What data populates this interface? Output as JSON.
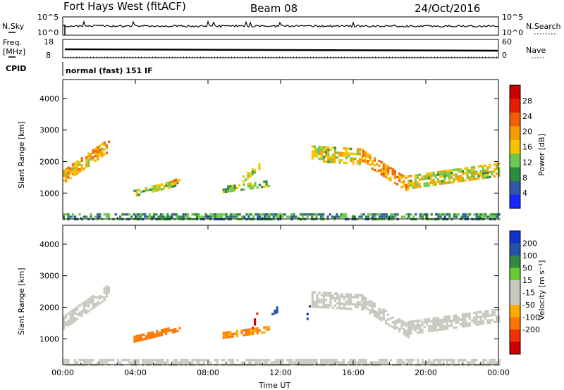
{
  "header": {
    "title": "Fort Hays West (fitACF)",
    "beam": "Beam 08",
    "date": "24/Oct/2016"
  },
  "panels": {
    "nsky": {
      "label": "N.Sky",
      "ticks_top": "10^5",
      "ticks_bottom": "10^0"
    },
    "nsearch": {
      "label": "N.Search",
      "ticks_top": "10^5",
      "ticks_bottom": "10^0"
    },
    "freq": {
      "label_1": "Freq.",
      "label_2": "[MHz]",
      "ticks_top": "18",
      "ticks_bottom": "8"
    },
    "nave": {
      "label": "Nave",
      "ticks_top": "60",
      "ticks_bottom": "0"
    },
    "cpid": {
      "label": "CPID",
      "text": "normal (fast) 151 IF"
    }
  },
  "colors": {
    "power": [
      "#1428ff",
      "#2f59a8",
      "#2f8c3c",
      "#6ec84c",
      "#f5c400",
      "#f59a00",
      "#f25f00",
      "#e61e00",
      "#c80000"
    ],
    "velocity": [
      "#cc0000",
      "#ee3300",
      "#ff7700",
      "#ffaa00",
      "#c8c8c0",
      "#c8c8c0",
      "#66cc33",
      "#338844",
      "#2255aa",
      "#1133cc"
    ]
  },
  "chart_data": [
    {
      "type": "heatmap",
      "ylabel": "Slant Range [km]",
      "xlabel": "",
      "x_ticks": [
        "00:00",
        "04:00",
        "08:00",
        "12:00",
        "16:00",
        "20:00",
        "00:00"
      ],
      "y_ticks": [
        "1000",
        "2000",
        "3000",
        "4000"
      ],
      "xlim": [
        0,
        24
      ],
      "ylim": [
        180,
        4600
      ],
      "colorbar": {
        "label": "Power [dB]",
        "ticks": [
          "4",
          "8",
          "12",
          "16",
          "20",
          "24",
          "28"
        ],
        "range": [
          0,
          32
        ]
      },
      "regions": [
        {
          "t0": 0.0,
          "t1": 2.6,
          "r_start": 1550,
          "r_end": 2600,
          "width": 380,
          "value": 18
        },
        {
          "t0": 3.9,
          "t1": 6.4,
          "r_start": 1050,
          "r_end": 1400,
          "width": 200,
          "value": 13
        },
        {
          "t0": 5.8,
          "t1": 6.2,
          "r_start": 1350,
          "r_end": 1450,
          "width": 120,
          "value": 20
        },
        {
          "t0": 8.8,
          "t1": 11.4,
          "r_start": 1150,
          "r_end": 1350,
          "width": 160,
          "value": 12
        },
        {
          "t0": 9.9,
          "t1": 10.8,
          "r_start": 1500,
          "r_end": 1900,
          "width": 180,
          "value": 14
        },
        {
          "t0": 13.7,
          "t1": 16.5,
          "r_start": 2300,
          "r_end": 2200,
          "width": 480,
          "value": 15
        },
        {
          "t0": 16.5,
          "t1": 19.0,
          "r_start": 2200,
          "r_end": 1300,
          "width": 420,
          "value": 20
        },
        {
          "t0": 19.0,
          "t1": 24.0,
          "r_start": 1400,
          "r_end": 1800,
          "width": 420,
          "value": 15
        },
        {
          "t0": 0.0,
          "t1": 24.0,
          "r_start": 300,
          "r_end": 300,
          "width": 180,
          "value": 9
        }
      ]
    },
    {
      "type": "heatmap",
      "ylabel": "Slant Range [km]",
      "xlabel": "Time UT",
      "x_ticks": [
        "00:00",
        "04:00",
        "08:00",
        "12:00",
        "16:00",
        "20:00",
        "00:00"
      ],
      "y_ticks": [
        "1000",
        "2000",
        "3000",
        "4000"
      ],
      "xlim": [
        0,
        24
      ],
      "ylim": [
        180,
        4600
      ],
      "colorbar": {
        "label": "Velocity [m s⁻¹]",
        "ticks": [
          "200",
          "100",
          "50",
          "15",
          "-15",
          "-50",
          "-100",
          "-200"
        ],
        "range": [
          -250,
          250
        ]
      },
      "regions": [
        {
          "t0": 0.0,
          "t1": 2.6,
          "r_start": 1550,
          "r_end": 2600,
          "width": 380,
          "value": 0
        },
        {
          "t0": 3.9,
          "t1": 6.4,
          "r_start": 1050,
          "r_end": 1400,
          "width": 200,
          "value": -120
        },
        {
          "t0": 8.8,
          "t1": 11.4,
          "r_start": 1150,
          "r_end": 1350,
          "width": 160,
          "value": -100
        },
        {
          "t0": 10.4,
          "t1": 10.7,
          "r_start": 1400,
          "r_end": 1850,
          "width": 180,
          "value": -200
        },
        {
          "t0": 11.5,
          "t1": 11.8,
          "r_start": 1750,
          "r_end": 2000,
          "width": 160,
          "value": 180
        },
        {
          "t0": 13.3,
          "t1": 13.6,
          "r_start": 1500,
          "r_end": 2100,
          "width": 160,
          "value": 200
        },
        {
          "t0": 13.7,
          "t1": 16.5,
          "r_start": 2300,
          "r_end": 2200,
          "width": 480,
          "value": 0
        },
        {
          "t0": 16.5,
          "t1": 19.0,
          "r_start": 2200,
          "r_end": 1300,
          "width": 420,
          "value": 5
        },
        {
          "t0": 19.0,
          "t1": 24.0,
          "r_start": 1400,
          "r_end": 1800,
          "width": 420,
          "value": -20
        },
        {
          "t0": 0.0,
          "t1": 24.0,
          "r_start": 300,
          "r_end": 300,
          "width": 180,
          "value": -40
        }
      ]
    }
  ]
}
